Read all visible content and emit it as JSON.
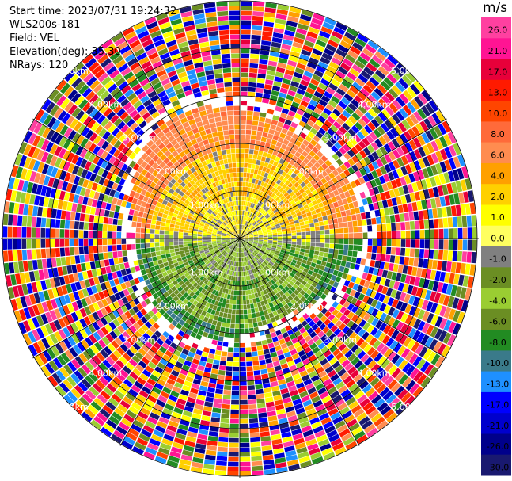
{
  "header": {
    "start_time": "Start time: 2023/07/31 19:24:32",
    "instrument": "WLS200s-181",
    "field": "Field: VEL",
    "elevation": "Elevation(deg): 35.30",
    "nrays": "NRays: 120"
  },
  "chart_data": {
    "type": "heatmap",
    "subtype": "polar-ppi",
    "title": "",
    "n_rays": 120,
    "range_labels": [
      "1.00km",
      "2.00km",
      "3.00km",
      "4.00km",
      "5.00km"
    ],
    "range_max_km": 5.0,
    "colorbar": {
      "unit": "m/s",
      "ticks": [
        "26.0",
        "21.0",
        "17.0",
        "13.0",
        "10.0",
        "8.0",
        "6.0",
        "4.0",
        "2.0",
        "1.0",
        "0.0",
        "-1.0",
        "-2.0",
        "-4.0",
        "-6.0",
        "-8.0",
        "-10.0",
        "-13.0",
        "-17.0",
        "-21.0",
        "-26.0",
        "-30.0"
      ],
      "colors": [
        "#ff40a0",
        "#ff1493",
        "#e8003a",
        "#ff1a00",
        "#ff4500",
        "#ff6a3a",
        "#ff8c50",
        "#ffa000",
        "#ffd000",
        "#ffff00",
        "#ffff60",
        "#808080",
        "#6b8e23",
        "#9acd32",
        "#6b8e23",
        "#228b22",
        "#3a7a8a",
        "#1e90ff",
        "#0000ff",
        "#0000cd",
        "#00008b",
        "#191970"
      ]
    }
  }
}
